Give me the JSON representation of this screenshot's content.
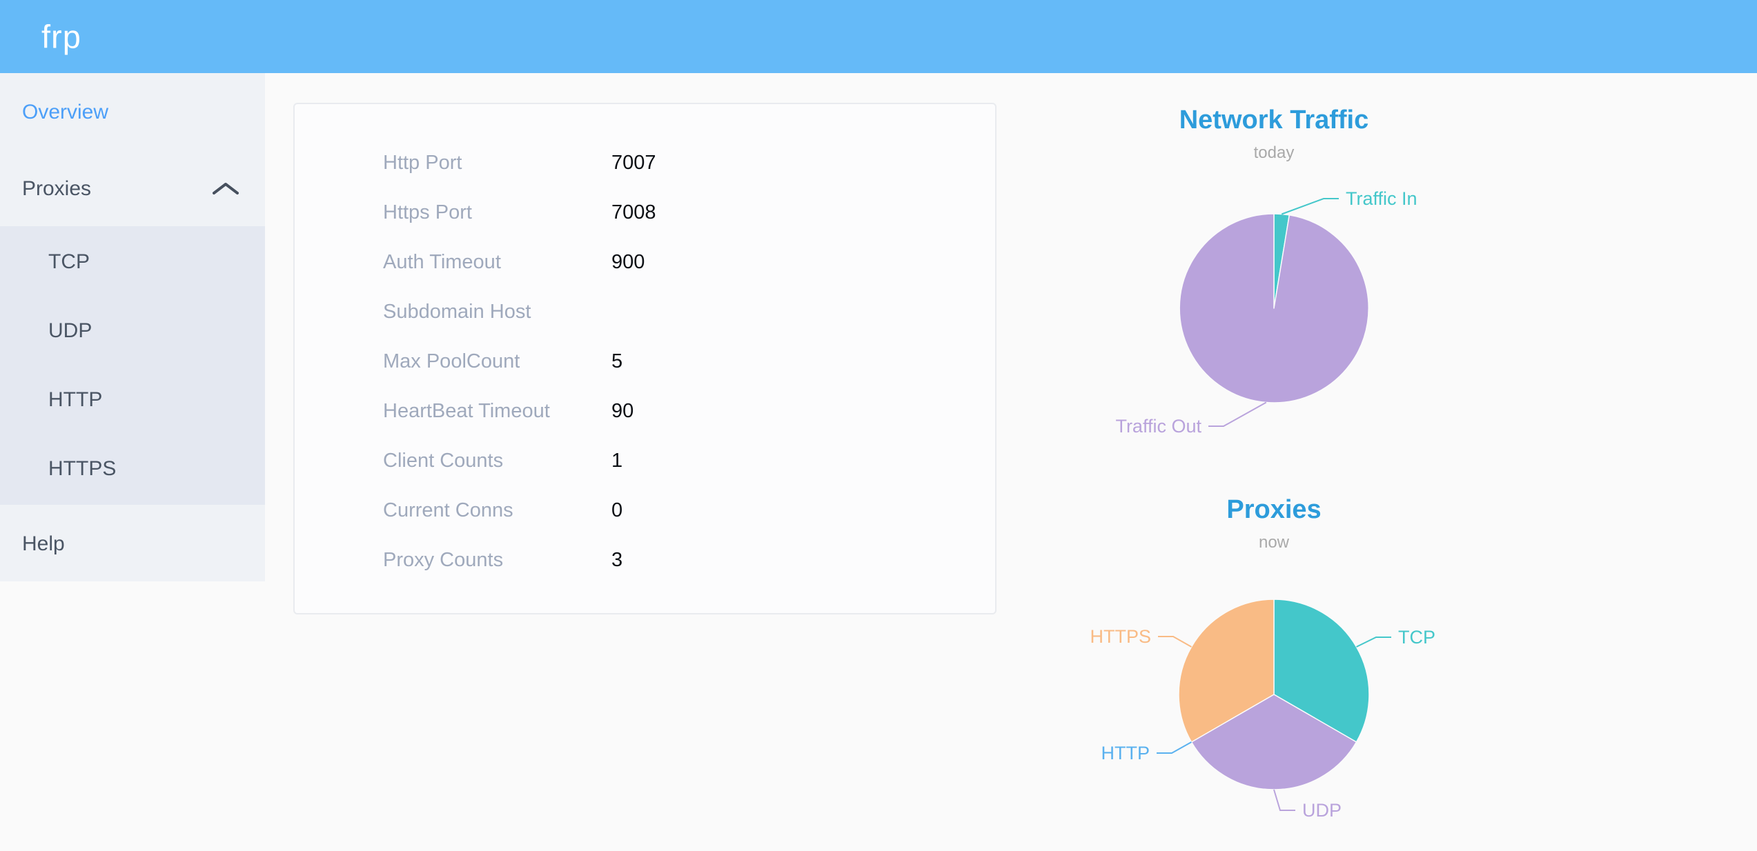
{
  "header": {
    "logo": "frp"
  },
  "sidebar": {
    "items": [
      {
        "label": "Overview",
        "state": "active"
      },
      {
        "label": "Proxies",
        "state": "expanded",
        "icon": "chevron-up-icon"
      },
      {
        "label": "TCP",
        "submenu_of": "Proxies"
      },
      {
        "label": "UDP",
        "submenu_of": "Proxies"
      },
      {
        "label": "HTTP",
        "submenu_of": "Proxies"
      },
      {
        "label": "HTTPS",
        "submenu_of": "Proxies"
      },
      {
        "label": "Help"
      }
    ]
  },
  "config_panel": {
    "rows": [
      {
        "label": "Http Port",
        "value": "7007"
      },
      {
        "label": "Https Port",
        "value": "7008"
      },
      {
        "label": "Auth Timeout",
        "value": "900"
      },
      {
        "label": "Subdomain Host",
        "value": ""
      },
      {
        "label": "Max PoolCount",
        "value": "5"
      },
      {
        "label": "HeartBeat Timeout",
        "value": "90"
      },
      {
        "label": "Client Counts",
        "value": "1"
      },
      {
        "label": "Current Conns",
        "value": "0"
      },
      {
        "label": "Proxy Counts",
        "value": "3"
      }
    ]
  },
  "chart_data": [
    {
      "type": "pie",
      "title": "Network Traffic",
      "subtitle": "today",
      "unit": "percent (estimated from slice angles)",
      "legend_position": "none",
      "labels": "outside with leader lines",
      "series": [
        {
          "name": "Traffic In",
          "value": 2.6,
          "color": "#44C7CA"
        },
        {
          "name": "Traffic Out",
          "value": 97.4,
          "color": "#B9A3DC"
        }
      ]
    },
    {
      "type": "pie",
      "title": "Proxies",
      "subtitle": "now",
      "unit": "proxy count",
      "legend_position": "none",
      "labels": "outside with leader lines",
      "series": [
        {
          "name": "TCP",
          "value": 1,
          "color": "#44C7CA"
        },
        {
          "name": "UDP",
          "value": 1,
          "color": "#B9A3DC"
        },
        {
          "name": "HTTP",
          "value": 0,
          "color": "#5AB1EF"
        },
        {
          "name": "HTTPS",
          "value": 1,
          "color": "#F9BB85"
        }
      ]
    }
  ],
  "colors": {
    "header_bg": "#65BAF8",
    "sidebar_bg": "#EFF2F6",
    "submenu_bg": "#E4E8F1",
    "active_link": "#4C9FF8",
    "chart_title": "#2D9CDB",
    "panel_label": "#9FA9BC"
  }
}
